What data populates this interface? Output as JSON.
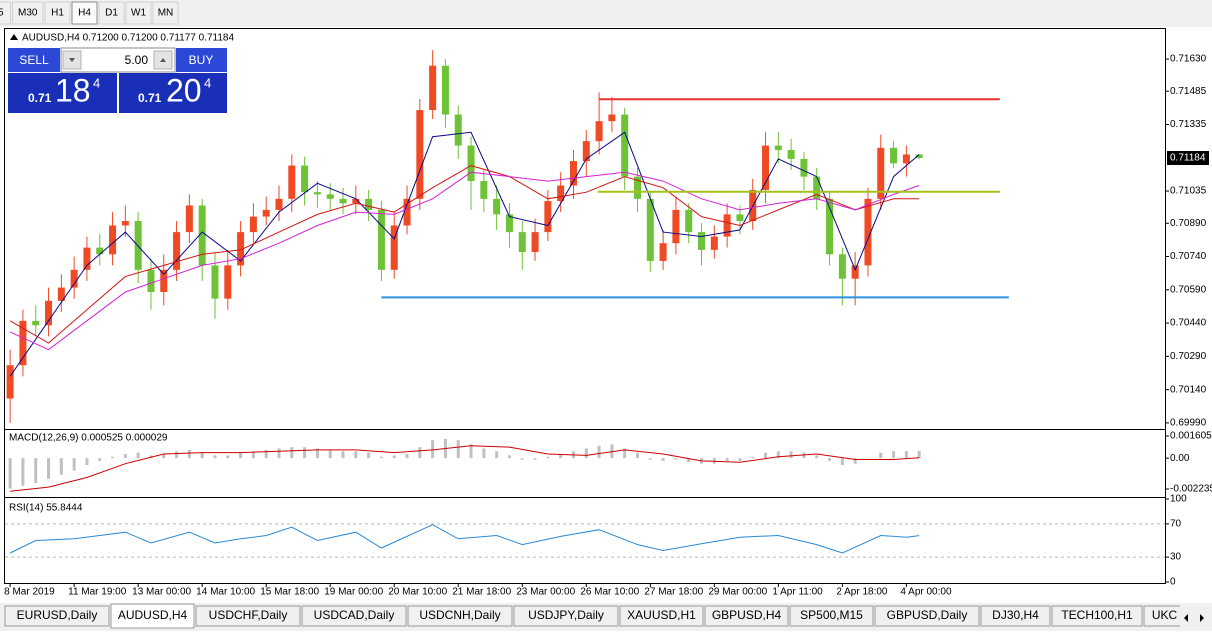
{
  "timeframes": [
    {
      "label": "5"
    },
    {
      "label": "M30"
    },
    {
      "label": "H1"
    },
    {
      "label": "H4",
      "active": true
    },
    {
      "label": "D1"
    },
    {
      "label": "W1"
    },
    {
      "label": "MN"
    }
  ],
  "trade_panel": {
    "sell": "SELL",
    "lots": "5.00",
    "buy": "BUY",
    "sell_price": {
      "prefix": "0.71",
      "big": "18",
      "small": "4"
    },
    "buy_price": {
      "prefix": "0.71",
      "big": "20",
      "small": "4"
    }
  },
  "tabs": [
    {
      "label": "EURUSD,Daily"
    },
    {
      "label": "AUDUSD,H4",
      "active": true
    },
    {
      "label": "USDCHF,Daily"
    },
    {
      "label": "USDCAD,Daily"
    },
    {
      "label": "USDCNH,Daily"
    },
    {
      "label": "USDJPY,Daily"
    },
    {
      "label": "XAUUSD,H1"
    },
    {
      "label": "GBPUSD,H4"
    },
    {
      "label": "SP500,M15"
    },
    {
      "label": "GBPUSD,Daily"
    },
    {
      "label": "DJ30,H4"
    },
    {
      "label": "TECH100,H1"
    },
    {
      "label": "UKC"
    }
  ],
  "chart_data": [
    {
      "type": "candlestick",
      "title": "AUDUSD,H4  0.71200 0.71200 0.71177 0.71184",
      "up_color": "#f04a24",
      "down_color": "#6dc235",
      "open": [
        0.701,
        0.7025,
        0.7045,
        0.7043,
        0.7054,
        0.706,
        0.7068,
        0.7078,
        0.7075,
        0.7088,
        0.709,
        0.7068,
        0.7058,
        0.7068,
        0.7085,
        0.7097,
        0.707,
        0.7055,
        0.707,
        0.7085,
        0.7092,
        0.7095,
        0.71,
        0.7115,
        0.7103,
        0.7102,
        0.71,
        0.7098,
        0.71,
        0.7095,
        0.7068,
        0.7088,
        0.71,
        0.714,
        0.716,
        0.7138,
        0.7124,
        0.7108,
        0.71,
        0.7093,
        0.7085,
        0.7076,
        0.7085,
        0.7099,
        0.7106,
        0.7117,
        0.7126,
        0.7135,
        0.7138,
        0.711,
        0.71,
        0.7072,
        0.708,
        0.7095,
        0.7085,
        0.7077,
        0.7083,
        0.7093,
        0.709,
        0.7104,
        0.7124,
        0.7122,
        0.7118,
        0.711,
        0.71,
        0.7075,
        0.7064,
        0.707,
        0.71,
        0.7123,
        0.7116,
        0.712
      ],
      "high": [
        0.7032,
        0.705,
        0.7052,
        0.706,
        0.7066,
        0.7074,
        0.7083,
        0.7084,
        0.7094,
        0.7097,
        0.7094,
        0.7073,
        0.7075,
        0.709,
        0.7102,
        0.71,
        0.7076,
        0.7077,
        0.709,
        0.7098,
        0.7101,
        0.7106,
        0.712,
        0.7119,
        0.7108,
        0.7107,
        0.7105,
        0.7106,
        0.7104,
        0.7099,
        0.7094,
        0.7106,
        0.7145,
        0.7167,
        0.7163,
        0.7142,
        0.7128,
        0.7113,
        0.7106,
        0.7098,
        0.709,
        0.7091,
        0.7104,
        0.7112,
        0.7122,
        0.7131,
        0.7148,
        0.7146,
        0.7141,
        0.7114,
        0.7103,
        0.7086,
        0.7101,
        0.7098,
        0.7089,
        0.7088,
        0.7098,
        0.7097,
        0.7109,
        0.713,
        0.713,
        0.7127,
        0.7121,
        0.7114,
        0.7103,
        0.7078,
        0.7076,
        0.7105,
        0.7129,
        0.7126,
        0.7124,
        0.712
      ],
      "low": [
        0.6999,
        0.702,
        0.7038,
        0.7038,
        0.7049,
        0.7055,
        0.7063,
        0.707,
        0.707,
        0.7083,
        0.7062,
        0.705,
        0.7052,
        0.7063,
        0.708,
        0.7063,
        0.7046,
        0.705,
        0.7065,
        0.708,
        0.7088,
        0.709,
        0.7094,
        0.7097,
        0.7096,
        0.7095,
        0.7093,
        0.7093,
        0.709,
        0.7063,
        0.7064,
        0.7084,
        0.7095,
        0.7136,
        0.7132,
        0.7118,
        0.7095,
        0.7094,
        0.7086,
        0.7078,
        0.7068,
        0.7072,
        0.7081,
        0.7094,
        0.71,
        0.711,
        0.712,
        0.713,
        0.7104,
        0.7094,
        0.7067,
        0.7068,
        0.7075,
        0.708,
        0.707,
        0.7073,
        0.7078,
        0.7084,
        0.7086,
        0.7098,
        0.7116,
        0.7113,
        0.7104,
        0.7095,
        0.707,
        0.7052,
        0.7052,
        0.7065,
        0.7095,
        0.7114,
        0.711,
        0.71177
      ],
      "close": [
        0.7025,
        0.7045,
        0.7043,
        0.7054,
        0.706,
        0.7068,
        0.7078,
        0.7075,
        0.7088,
        0.709,
        0.7068,
        0.7058,
        0.7068,
        0.7085,
        0.7097,
        0.707,
        0.7055,
        0.707,
        0.7085,
        0.7092,
        0.7095,
        0.71,
        0.7115,
        0.7103,
        0.7102,
        0.71,
        0.7098,
        0.71,
        0.7095,
        0.7068,
        0.7088,
        0.71,
        0.714,
        0.716,
        0.7138,
        0.7124,
        0.7108,
        0.71,
        0.7093,
        0.7085,
        0.7076,
        0.7085,
        0.7099,
        0.7106,
        0.7117,
        0.7126,
        0.7135,
        0.7138,
        0.711,
        0.71,
        0.7072,
        0.708,
        0.7095,
        0.7085,
        0.7077,
        0.7083,
        0.7093,
        0.709,
        0.7104,
        0.7124,
        0.7122,
        0.7118,
        0.711,
        0.71,
        0.7075,
        0.7064,
        0.707,
        0.71,
        0.7123,
        0.7116,
        0.712,
        0.71184
      ],
      "series": [
        {
          "color": "#0a0a8c",
          "x": [
            0,
            3,
            6,
            9,
            12,
            15,
            18,
            21,
            24,
            27,
            30,
            33,
            36,
            39,
            42,
            45,
            48,
            51,
            54,
            57,
            60,
            63,
            66,
            69,
            71
          ],
          "values": [
            0.702,
            0.7045,
            0.707,
            0.7085,
            0.7066,
            0.7085,
            0.7072,
            0.7094,
            0.7107,
            0.71,
            0.7082,
            0.7128,
            0.713,
            0.7092,
            0.7088,
            0.7118,
            0.713,
            0.7085,
            0.7083,
            0.7086,
            0.7118,
            0.711,
            0.7068,
            0.711,
            0.712
          ]
        },
        {
          "color": "#d41515",
          "x": [
            0,
            3,
            6,
            9,
            12,
            15,
            18,
            21,
            24,
            27,
            30,
            33,
            36,
            39,
            42,
            45,
            48,
            51,
            54,
            57,
            60,
            63,
            66,
            69,
            71
          ],
          "values": [
            0.7045,
            0.7035,
            0.705,
            0.7065,
            0.707,
            0.7075,
            0.7077,
            0.7085,
            0.7093,
            0.7098,
            0.7094,
            0.7105,
            0.7115,
            0.711,
            0.71,
            0.7103,
            0.711,
            0.7105,
            0.7092,
            0.7088,
            0.7095,
            0.7102,
            0.7095,
            0.71,
            0.71
          ]
        },
        {
          "color": "#d421d4",
          "x": [
            0,
            3,
            6,
            9,
            12,
            15,
            18,
            21,
            24,
            27,
            30,
            33,
            36,
            39,
            42,
            45,
            48,
            51,
            54,
            57,
            60,
            63,
            66,
            69,
            71
          ],
          "values": [
            0.704,
            0.7032,
            0.7045,
            0.7058,
            0.7064,
            0.707,
            0.7073,
            0.708,
            0.7088,
            0.7094,
            0.7093,
            0.71,
            0.7112,
            0.711,
            0.7108,
            0.711,
            0.7112,
            0.7108,
            0.71,
            0.7095,
            0.7098,
            0.71,
            0.7095,
            0.7102,
            0.7106
          ]
        }
      ],
      "hlines": [
        {
          "value": 0.71449,
          "x": [
            46,
            77.3
          ],
          "color": "#f03030"
        },
        {
          "value": 0.71032,
          "x": [
            45.9,
            77.3
          ],
          "color": "#a6c21a"
        },
        {
          "value": 0.70556,
          "x": [
            29,
            78
          ]
        }
      ],
      "hline_default_color": "#2f8fe0",
      "last_price": 0.71184,
      "xlim": [
        -0.4,
        90.2
      ],
      "xticks": [
        {
          "value": 0,
          "label": "8 Mar 2019"
        },
        {
          "value": 5,
          "label": "11 Mar 19:00"
        },
        {
          "value": 10,
          "label": "13 Mar 00:00"
        },
        {
          "value": 15,
          "label": "14 Mar 10:00"
        },
        {
          "value": 20,
          "label": "15 Mar 18:00"
        },
        {
          "value": 25,
          "label": "19 Mar 00:00"
        },
        {
          "value": 30,
          "label": "20 Mar 10:00"
        },
        {
          "value": 35,
          "label": "21 Mar 18:00"
        },
        {
          "value": 40,
          "label": "23 Mar 00:00"
        },
        {
          "value": 45,
          "label": "26 Mar 10:00"
        },
        {
          "value": 50,
          "label": "27 Mar 18:00"
        },
        {
          "value": 55,
          "label": "29 Mar 00:00"
        },
        {
          "value": 60,
          "label": "1 Apr 11:00"
        },
        {
          "value": 65,
          "label": "2 Apr 18:00"
        },
        {
          "value": 70,
          "label": "4 Apr 00:00"
        }
      ],
      "ylim": [
        0.69967,
        0.71761
      ],
      "yticks": [
        {
          "value": 0.7163,
          "label": "0.71630"
        },
        0.71485,
        0.71335,
        0.71035,
        {
          "value": 0.7089,
          "label": "0.70890"
        },
        {
          "value": 0.7074,
          "label": "0.70740"
        },
        {
          "value": 0.7059,
          "label": "0.70590"
        },
        {
          "value": 0.7044,
          "label": "0.70440"
        },
        {
          "value": 0.7029,
          "label": "0.70290"
        },
        {
          "value": 0.7014,
          "label": "0.70140"
        },
        {
          "value": 0.6999,
          "label": "0.69990"
        }
      ]
    },
    {
      "type": "macd",
      "title": "MACD(12,26,9) 0.000525 0.000029",
      "histogram": {
        "color": "#c0c0c0",
        "values": [
          -0.0022,
          -0.002,
          -0.0018,
          -0.0015,
          -0.0012,
          -0.0009,
          -0.0005,
          -0.0002,
          0.0001,
          0.0003,
          0.0004,
          0.0002,
          0.0003,
          0.0005,
          0.0006,
          0.0004,
          0.0002,
          0.0002,
          0.0004,
          0.0005,
          0.0006,
          0.0007,
          0.0008,
          0.0008,
          0.0007,
          0.0006,
          0.0005,
          0.0005,
          0.0004,
          0.0001,
          0.0002,
          0.0003,
          0.0008,
          0.0013,
          0.0014,
          0.0013,
          0.001,
          0.0007,
          0.0005,
          0.0002,
          -0.0001,
          -0.0001,
          0.0001,
          0.0003,
          0.0005,
          0.0007,
          0.0009,
          0.001,
          0.0007,
          0.0004,
          -0.0001,
          -0.0002,
          -0.0001,
          -0.0003,
          -0.0004,
          -0.0004,
          -0.0002,
          -0.0002,
          0.0001,
          0.0004,
          0.0005,
          0.0005,
          0.0004,
          0.0002,
          -0.0002,
          -0.0005,
          -0.0004,
          0.0,
          0.0004,
          0.0005,
          0.0005,
          0.000525
        ]
      },
      "signal": {
        "color": "#d00000",
        "x": [
          0,
          3,
          6,
          9,
          12,
          15,
          18,
          21,
          24,
          27,
          30,
          33,
          36,
          39,
          42,
          45,
          48,
          51,
          54,
          57,
          60,
          63,
          66,
          69,
          71
        ],
        "values": [
          -0.0024,
          -0.0021,
          -0.0014,
          -0.0004,
          0.0003,
          0.0004,
          0.0004,
          0.0005,
          0.0006,
          0.0006,
          0.0004,
          0.0006,
          0.0009,
          0.0008,
          0.0003,
          0.0002,
          0.0006,
          0.0003,
          -0.0002,
          -0.0003,
          0.0001,
          0.0003,
          -0.0001,
          -0.0001,
          2.9e-05
        ]
      },
      "ylim": [
        -0.00267,
        0.001967
      ],
      "yticks": [
        0.001605,
        {
          "value": 0,
          "label": "0.00"
        },
        -0.002235
      ]
    },
    {
      "type": "rsi",
      "title": "RSI(14) 55.8444",
      "color": "#2a8ad4",
      "x": [
        0,
        2,
        5,
        7,
        9,
        11,
        14,
        16,
        18,
        20,
        22,
        24,
        27,
        29,
        33,
        35,
        38,
        40,
        43,
        46,
        49,
        51,
        54,
        57,
        60,
        63,
        65,
        68,
        70,
        71
      ],
      "values": [
        35,
        50,
        52,
        56,
        60,
        47,
        60,
        47,
        52,
        56,
        66,
        50,
        60,
        41,
        69,
        52,
        56,
        45,
        55,
        63,
        45,
        38,
        46,
        54,
        56,
        45,
        35,
        56,
        54,
        55.8444
      ],
      "levels": [
        70,
        30
      ],
      "ylim": [
        0,
        100
      ],
      "yticks": [
        100,
        70,
        30,
        0
      ]
    }
  ]
}
